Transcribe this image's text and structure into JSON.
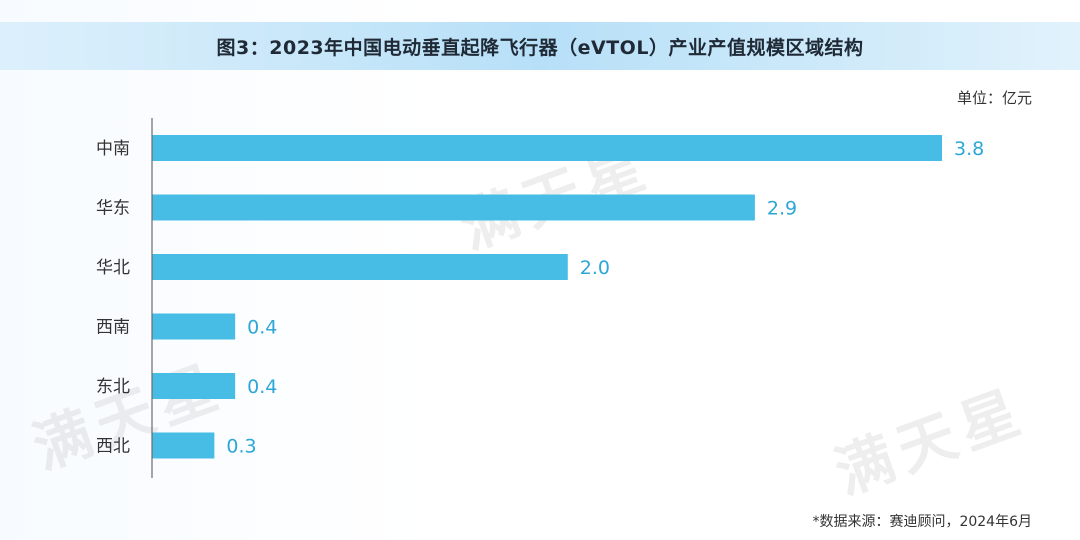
{
  "title": "图3：2023年中国电动垂直起降飞行器（eVTOL）产业产值规模区域结构",
  "unit_label": "单位：亿元",
  "source": "*数据来源：赛迪顾问，2024年6月",
  "watermark": {
    "text": "满天星"
  },
  "colors": {
    "bar": "#47bde6",
    "value_label": "#2da7d6",
    "axis": "#6b6b6b",
    "title_band": "#aadaf6"
  },
  "chart_data": {
    "type": "bar",
    "orientation": "horizontal",
    "categories": [
      "中南",
      "华东",
      "华北",
      "西南",
      "东北",
      "西北"
    ],
    "values": [
      3.8,
      2.9,
      2.0,
      0.4,
      0.4,
      0.3
    ],
    "value_labels": [
      "3.8",
      "2.9",
      "2.0",
      "0.4",
      "0.4",
      "0.3"
    ],
    "xlim": [
      0,
      3.8
    ],
    "grid": false,
    "legend": "none"
  }
}
